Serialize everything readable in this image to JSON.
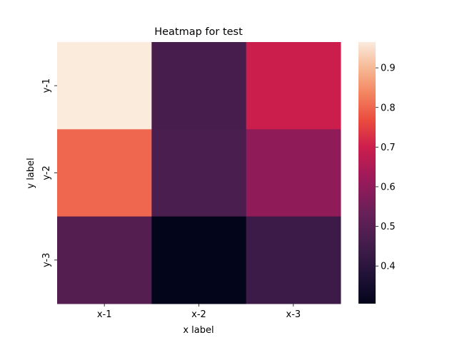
{
  "chart_data": {
    "type": "heatmap",
    "title": "Heatmap for test",
    "xlabel": "x label",
    "ylabel": "y label",
    "x_categories": [
      "x-1",
      "x-2",
      "x-3"
    ],
    "y_categories": [
      "y-1",
      "y-2",
      "y-3"
    ],
    "values": [
      [
        0.965,
        0.46,
        0.7
      ],
      [
        0.8,
        0.47,
        0.6
      ],
      [
        0.49,
        0.305,
        0.44
      ]
    ],
    "colorbar": {
      "vmin": 0.305,
      "vmax": 0.965,
      "ticks": [
        0.4,
        0.5,
        0.6,
        0.7,
        0.8,
        0.9
      ],
      "tick_labels": [
        "0.4",
        "0.5",
        "0.6",
        "0.7",
        "0.8",
        "0.9"
      ],
      "colormap": "rocket"
    }
  }
}
